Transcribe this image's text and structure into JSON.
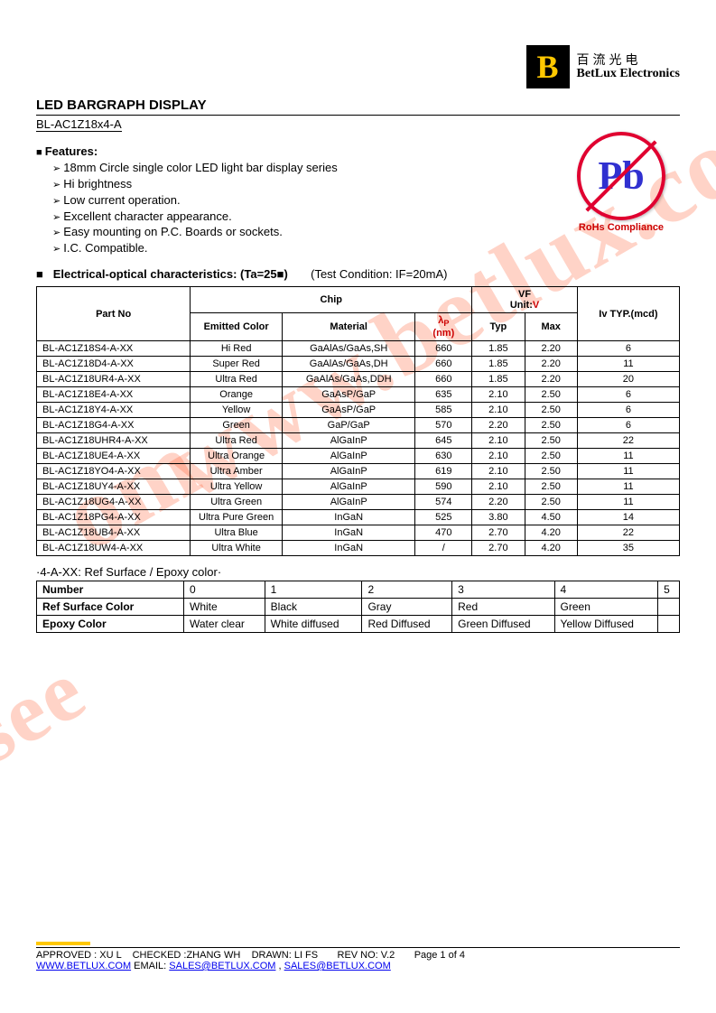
{
  "logo": {
    "letter": "B",
    "cn": "百流光电",
    "en": "BetLux Electronics"
  },
  "title": {
    "main": "LED BARGRAPH DISPLAY",
    "model": "BL-AC1Z18x4-A"
  },
  "features": {
    "heading": "Features:",
    "items": [
      "18mm Circle single color LED light bar display series",
      "Hi brightness",
      "Low current operation.",
      "Excellent character appearance.",
      "Easy mounting on P.C. Boards or sockets.",
      "I.C. Compatible."
    ]
  },
  "rohs": {
    "pb": "Pb",
    "label": "RoHs Compliance"
  },
  "elec": {
    "heading_bold": "Electrical-optical characteristics: (Ta=25■)",
    "heading_cond": "(Test Condition: IF=20mA)",
    "headers": {
      "partno": "Part No",
      "chip": "Chip",
      "emitted": "Emitted Color",
      "material": "Material",
      "lambda_html": "λ<sub>P</sub>",
      "nm": "(nm)",
      "vf": "VF",
      "unit": "Unit:",
      "unit_v": "V",
      "typ": "Typ",
      "max": "Max",
      "iv": "Iv TYP.(mcd)"
    },
    "rows": [
      {
        "pn": "BL-AC1Z18S4-A-XX",
        "col": "Hi Red",
        "mat": "GaAlAs/GaAs,SH",
        "lp": "660",
        "typ": "1.85",
        "max": "2.20",
        "iv": "6"
      },
      {
        "pn": "BL-AC1Z18D4-A-XX",
        "col": "Super Red",
        "mat": "GaAlAs/GaAs,DH",
        "lp": "660",
        "typ": "1.85",
        "max": "2.20",
        "iv": "11"
      },
      {
        "pn": "BL-AC1Z18UR4-A-XX",
        "col": "Ultra Red",
        "mat": "GaAlAs/GaAs,DDH",
        "lp": "660",
        "typ": "1.85",
        "max": "2.20",
        "iv": "20"
      },
      {
        "pn": "BL-AC1Z18E4-A-XX",
        "col": "Orange",
        "mat": "GaAsP/GaP",
        "lp": "635",
        "typ": "2.10",
        "max": "2.50",
        "iv": "6"
      },
      {
        "pn": "BL-AC1Z18Y4-A-XX",
        "col": "Yellow",
        "mat": "GaAsP/GaP",
        "lp": "585",
        "typ": "2.10",
        "max": "2.50",
        "iv": "6"
      },
      {
        "pn": "BL-AC1Z18G4-A-XX",
        "col": "Green",
        "mat": "GaP/GaP",
        "lp": "570",
        "typ": "2.20",
        "max": "2.50",
        "iv": "6"
      },
      {
        "pn": "BL-AC1Z18UHR4-A-XX",
        "col": "Ultra Red",
        "mat": "AlGaInP",
        "lp": "645",
        "typ": "2.10",
        "max": "2.50",
        "iv": "22"
      },
      {
        "pn": "BL-AC1Z18UE4-A-XX",
        "col": "Ultra Orange",
        "mat": "AlGaInP",
        "lp": "630",
        "typ": "2.10",
        "max": "2.50",
        "iv": "11"
      },
      {
        "pn": "BL-AC1Z18YO4-A-XX",
        "col": "Ultra Amber",
        "mat": "AlGaInP",
        "lp": "619",
        "typ": "2.10",
        "max": "2.50",
        "iv": "11"
      },
      {
        "pn": "BL-AC1Z18UY4-A-XX",
        "col": "Ultra Yellow",
        "mat": "AlGaInP",
        "lp": "590",
        "typ": "2.10",
        "max": "2.50",
        "iv": "11"
      },
      {
        "pn": "BL-AC1Z18UG4-A-XX",
        "col": "Ultra Green",
        "mat": "AlGaInP",
        "lp": "574",
        "typ": "2.20",
        "max": "2.50",
        "iv": "11"
      },
      {
        "pn": "BL-AC1Z18PG4-A-XX",
        "col": "Ultra Pure Green",
        "mat": "InGaN",
        "lp": "525",
        "typ": "3.80",
        "max": "4.50",
        "iv": "14"
      },
      {
        "pn": "BL-AC1Z18UB4-A-XX",
        "col": "Ultra Blue",
        "mat": "InGaN",
        "lp": "470",
        "typ": "2.70",
        "max": "4.20",
        "iv": "22"
      },
      {
        "pn": "BL-AC1Z18UW4-A-XX",
        "col": "Ultra White",
        "mat": "InGaN",
        "lp": "/",
        "typ": "2.70",
        "max": "4.20",
        "iv": "35"
      }
    ]
  },
  "suffix": {
    "note": "·4-A-XX: Ref Surface / Epoxy color·",
    "cols": [
      "Number",
      "0",
      "1",
      "2",
      "3",
      "4",
      "5"
    ],
    "row1_label": "Ref Surface Color",
    "row1": [
      "White",
      "Black",
      "Gray",
      "Red",
      "Green",
      ""
    ],
    "row2_label": "Epoxy Color",
    "row2": [
      "Water clear",
      "White diffused",
      "Red Diffused",
      "Green Diffused",
      "Yellow Diffused",
      ""
    ]
  },
  "footer": {
    "approved": "APPROVED : XU L    CHECKED :ZHANG WH    DRAWN: LI FS       REV NO: V.2       Page 1 of 4",
    "www": "WWW.BETLUX.COM",
    "email_label": "      EMAIL: ",
    "email1": "SALES@BETLUX.COM",
    "sep": " , ",
    "email2": "SALES@BETLUX.COM"
  },
  "watermarks": {
    "w1": "www.betlux.com",
    "w2": "isee",
    "w3": "om"
  },
  "colors": {
    "accent_yellow": "#ffc800",
    "link_blue": "#0000ee",
    "red_text": "#cc0000",
    "rohs_red": "#e00030",
    "pb_blue": "#3030d0",
    "watermark": "rgba(255,80,30,0.25)"
  }
}
